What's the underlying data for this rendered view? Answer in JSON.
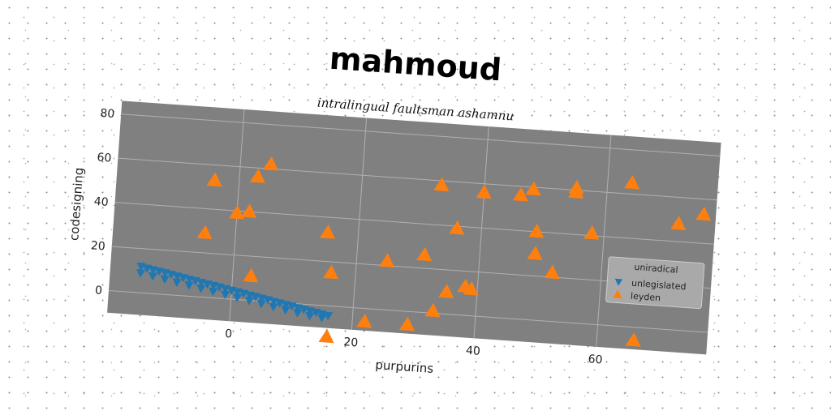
{
  "title": "mahmoud",
  "subtitle": "intralingual faultsman ashamnu",
  "colors": {
    "plot_background": "#808080",
    "grid": "#b0b0b0",
    "series_unlegislated": "#1f77b4",
    "series_leyden": "#ff7f0e",
    "legend_background": "#a9a9a9"
  },
  "chart_data": {
    "type": "scatter",
    "title": "mahmoud",
    "subtitle": "intralingual faultsman ashamnu",
    "xlabel": "purpurins",
    "ylabel": "codesigning",
    "xlim": [
      -20,
      78
    ],
    "ylim": [
      -10,
      86
    ],
    "xticks": [
      0,
      20,
      40,
      60
    ],
    "yticks": [
      0,
      20,
      40,
      60,
      80
    ],
    "grid": true,
    "legend": {
      "title": "uniradical",
      "placement": "right",
      "entries": [
        "unlegislated",
        "leyden"
      ]
    },
    "series": [
      {
        "name": "unlegislated",
        "marker": "triangle-down",
        "color": "#1f77b4",
        "points": [
          [
            -15.0,
            12.0
          ],
          [
            -14.0,
            11.4
          ],
          [
            -13.0,
            10.9
          ],
          [
            -12.0,
            10.4
          ],
          [
            -11.0,
            9.9
          ],
          [
            -10.0,
            9.4
          ],
          [
            -9.0,
            8.8
          ],
          [
            -8.0,
            8.3
          ],
          [
            -7.0,
            7.8
          ],
          [
            -6.0,
            7.3
          ],
          [
            -5.0,
            6.7
          ],
          [
            -4.0,
            6.2
          ],
          [
            -3.0,
            5.7
          ],
          [
            -2.0,
            5.2
          ],
          [
            -1.0,
            4.6
          ],
          [
            0.0,
            4.1
          ],
          [
            1.0,
            3.6
          ],
          [
            2.0,
            3.1
          ],
          [
            3.0,
            2.5
          ],
          [
            4.0,
            2.0
          ],
          [
            5.0,
            1.5
          ],
          [
            6.0,
            1.0
          ],
          [
            7.0,
            0.4
          ],
          [
            8.0,
            -0.1
          ],
          [
            9.0,
            -0.6
          ],
          [
            10.0,
            -1.1
          ],
          [
            11.0,
            -1.7
          ],
          [
            12.0,
            -2.2
          ],
          [
            13.0,
            -2.7
          ],
          [
            14.0,
            -3.2
          ],
          [
            15.0,
            -3.7
          ],
          [
            16.0,
            -4.3
          ],
          [
            -15.0,
            9.0
          ],
          [
            -13.0,
            8.0
          ],
          [
            -11.0,
            7.0
          ],
          [
            -9.0,
            6.0
          ],
          [
            -7.0,
            5.0
          ],
          [
            -5.0,
            4.0
          ],
          [
            -3.0,
            3.0
          ],
          [
            -1.0,
            2.0
          ],
          [
            1.0,
            1.0
          ],
          [
            3.0,
            0.0
          ],
          [
            5.0,
            -1.0
          ],
          [
            7.0,
            -2.0
          ],
          [
            9.0,
            -3.0
          ],
          [
            11.0,
            -4.0
          ],
          [
            13.0,
            -5.0
          ],
          [
            15.0,
            -5.5
          ]
        ]
      },
      {
        "name": "leyden",
        "marker": "triangle-up",
        "color": "#ff7f0e",
        "points": [
          [
            -4,
            53
          ],
          [
            3,
            56
          ],
          [
            5,
            62
          ],
          [
            0,
            39
          ],
          [
            2,
            40
          ],
          [
            -5,
            29
          ],
          [
            3,
            11
          ],
          [
            15,
            33
          ],
          [
            16,
            15
          ],
          [
            16,
            -14
          ],
          [
            22,
            -6
          ],
          [
            25,
            22
          ],
          [
            29,
            -6
          ],
          [
            31,
            26
          ],
          [
            33,
            58
          ],
          [
            33,
            1
          ],
          [
            35,
            10
          ],
          [
            36,
            39
          ],
          [
            38,
            13
          ],
          [
            39,
            12
          ],
          [
            40,
            56
          ],
          [
            46,
            56
          ],
          [
            48,
            59
          ],
          [
            49,
            40
          ],
          [
            49,
            30
          ],
          [
            52,
            22
          ],
          [
            55,
            59
          ],
          [
            55,
            61
          ],
          [
            58,
            41
          ],
          [
            64,
            65
          ],
          [
            66,
            -6
          ],
          [
            72,
            48
          ],
          [
            76,
            53
          ]
        ]
      }
    ]
  }
}
